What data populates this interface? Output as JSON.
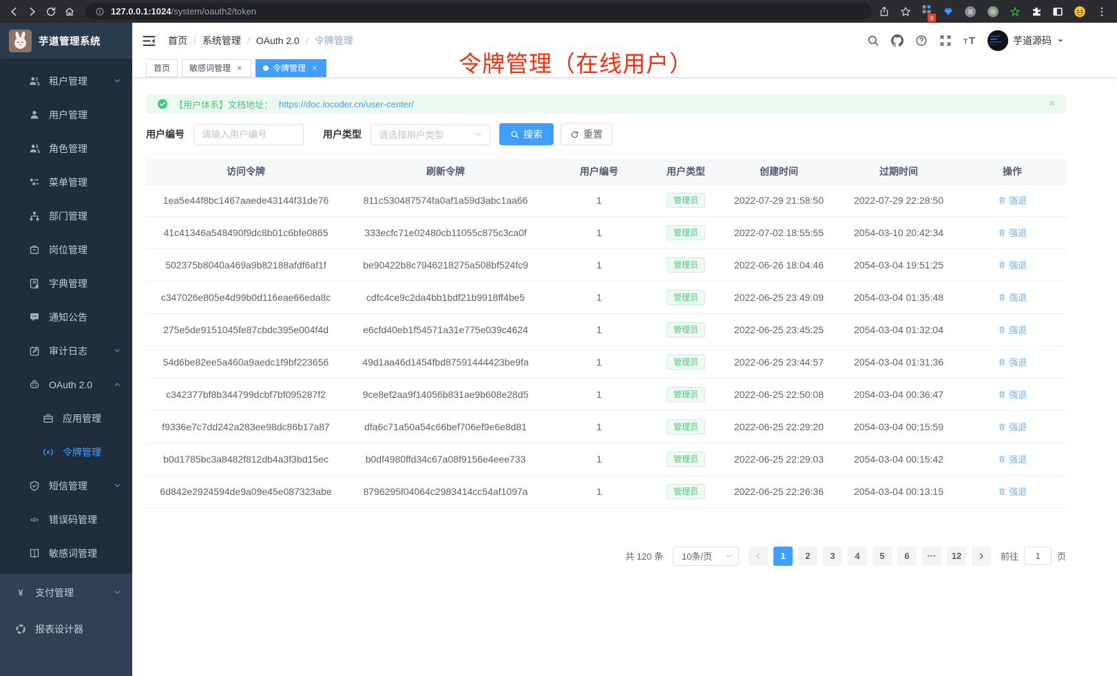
{
  "browser": {
    "url_host": "127.0.0.1:1024",
    "url_path": "/system/oauth2/token",
    "extension_badge": "9"
  },
  "sidebar": {
    "logo_title": "芋道管理系统",
    "items": [
      {
        "label": "租户管理",
        "icon": "tenant-icon",
        "chevron": "down",
        "level": 2,
        "section": "sub",
        "active": false
      },
      {
        "label": "用户管理",
        "icon": "user-icon",
        "chevron": "",
        "level": 2,
        "section": "sub",
        "active": false
      },
      {
        "label": "角色管理",
        "icon": "role-icon",
        "chevron": "",
        "level": 2,
        "section": "sub",
        "active": false
      },
      {
        "label": "菜单管理",
        "icon": "menu-tree-icon",
        "chevron": "",
        "level": 2,
        "section": "sub",
        "active": false
      },
      {
        "label": "部门管理",
        "icon": "dept-icon",
        "chevron": "",
        "level": 2,
        "section": "sub",
        "active": false
      },
      {
        "label": "岗位管理",
        "icon": "post-icon",
        "chevron": "",
        "level": 2,
        "section": "sub",
        "active": false
      },
      {
        "label": "字典管理",
        "icon": "dict-icon",
        "chevron": "",
        "level": 2,
        "section": "sub",
        "active": false
      },
      {
        "label": "通知公告",
        "icon": "notice-icon",
        "chevron": "",
        "level": 2,
        "section": "sub",
        "active": false
      },
      {
        "label": "审计日志",
        "icon": "audit-log-icon",
        "chevron": "down",
        "level": 2,
        "section": "sub",
        "active": false
      },
      {
        "label": "OAuth 2.0",
        "icon": "oauth-icon",
        "chevron": "up",
        "level": 2,
        "section": "sub",
        "active": false
      },
      {
        "label": "应用管理",
        "icon": "app-icon",
        "chevron": "",
        "level": 3,
        "section": "sub",
        "active": false
      },
      {
        "label": "令牌管理",
        "icon": "token-icon",
        "chevron": "",
        "level": 3,
        "section": "sub",
        "active": true
      },
      {
        "label": "短信管理",
        "icon": "sms-shield-icon",
        "chevron": "down",
        "level": 2,
        "section": "sub",
        "active": false
      },
      {
        "label": "错误码管理",
        "icon": "error-code-icon",
        "chevron": "",
        "level": 2,
        "section": "sub",
        "active": false
      },
      {
        "label": "敏感词管理",
        "icon": "sensitive-words-icon",
        "chevron": "",
        "level": 2,
        "section": "sub",
        "active": false
      },
      {
        "label": "支付管理",
        "icon": "pay-icon",
        "chevron": "down",
        "level": 1,
        "section": "top",
        "active": false
      },
      {
        "label": "报表设计器",
        "icon": "report-icon",
        "chevron": "",
        "level": 1,
        "section": "top",
        "active": false
      }
    ]
  },
  "header": {
    "breadcrumb": [
      "首页",
      "系统管理",
      "OAuth 2.0",
      "令牌管理"
    ],
    "breadcrumb_separator": "/",
    "username": "芋道源码"
  },
  "tabs": [
    {
      "label": "首页",
      "closable": false,
      "active": false
    },
    {
      "label": "敏感词管理",
      "closable": true,
      "active": false
    },
    {
      "label": "令牌管理",
      "closable": true,
      "active": true
    }
  ],
  "ui": {
    "close_glyph": "×"
  },
  "annotation": "令牌管理（在线用户）",
  "alert": {
    "text": "【用户体系】文档地址：",
    "link": "https://doc.iocoder.cn/user-center/"
  },
  "filters": {
    "user_id_label": "用户编号",
    "user_id_placeholder": "请输入用户编号",
    "user_type_label": "用户类型",
    "user_type_placeholder": "请选择用户类型",
    "search_label": "搜索",
    "reset_label": "重置"
  },
  "table": {
    "headers": [
      "访问令牌",
      "刷新令牌",
      "用户编号",
      "用户类型",
      "创建时间",
      "过期时间",
      "操作"
    ],
    "action_label": "强退",
    "rows": [
      {
        "access": "1ea5e44f8bc1467aaede43144f31de76",
        "refresh": "811c530487574fa0af1a59d3abc1aa66",
        "user_id": "1",
        "user_type": "管理员",
        "created": "2022-07-29 21:58:50",
        "expired": "2022-07-29 22:28:50"
      },
      {
        "access": "41c41346a548490f9dc8b01c6bfe0865",
        "refresh": "333ecfc71e02480cb11055c875c3ca0f",
        "user_id": "1",
        "user_type": "管理员",
        "created": "2022-07-02 18:55:55",
        "expired": "2054-03-10 20:42:34"
      },
      {
        "access": "502375b8040a469a9b82188afdf6af1f",
        "refresh": "be90422b8c7946218275a508bf524fc9",
        "user_id": "1",
        "user_type": "管理员",
        "created": "2022-06-26 18:04:46",
        "expired": "2054-03-04 19:51:25"
      },
      {
        "access": "c347026e805e4d99b0d116eae66eda8c",
        "refresh": "cdfc4ce9c2da4bb1bdf21b9918ff4be5",
        "user_id": "1",
        "user_type": "管理员",
        "created": "2022-06-25 23:49:09",
        "expired": "2054-03-04 01:35:48"
      },
      {
        "access": "275e5de9151045fe87cbdc395e004f4d",
        "refresh": "e6cfd40eb1f54571a31e775e039c4624",
        "user_id": "1",
        "user_type": "管理员",
        "created": "2022-06-25 23:45:25",
        "expired": "2054-03-04 01:32:04"
      },
      {
        "access": "54d6be82ee5a460a9aedc1f9bf223656",
        "refresh": "49d1aa46d1454fbd87591444423be9fa",
        "user_id": "1",
        "user_type": "管理员",
        "created": "2022-06-25 23:44:57",
        "expired": "2054-03-04 01:31:36"
      },
      {
        "access": "c342377bf8b344799dcbf7bf095287f2",
        "refresh": "9ce8ef2aa9f14056b831ae9b608e28d5",
        "user_id": "1",
        "user_type": "管理员",
        "created": "2022-06-25 22:50:08",
        "expired": "2054-03-04 00:36:47"
      },
      {
        "access": "f9336e7c7dd242a283ee98dc86b17a87",
        "refresh": "dfa6c71a50a54c66bef706ef9e6e8d81",
        "user_id": "1",
        "user_type": "管理员",
        "created": "2022-06-25 22:29:20",
        "expired": "2054-03-04 00:15:59"
      },
      {
        "access": "b0d1785bc3a8482f812db4a3f3bd15ec",
        "refresh": "b0df4980ffd34c67a08f9156e4eee733",
        "user_id": "1",
        "user_type": "管理员",
        "created": "2022-06-25 22:29:03",
        "expired": "2054-03-04 00:15:42"
      },
      {
        "access": "6d842e2924594de9a09e45e087323abe",
        "refresh": "8796295f04064c2983414cc54af1097a",
        "user_id": "1",
        "user_type": "管理员",
        "created": "2022-06-25 22:26:36",
        "expired": "2054-03-04 00:13:15"
      }
    ]
  },
  "pagination": {
    "total": "共 120 条",
    "page_size": "10条/页",
    "pages": [
      "1",
      "2",
      "3",
      "4",
      "5",
      "6",
      "···",
      "12"
    ],
    "active_page": "1",
    "goto_label": "前往",
    "goto_value": "1",
    "goto_unit": "页"
  },
  "colors": {
    "accent": "#409eff",
    "success": "#4fc97e",
    "annotation_red": "#fb2c0c"
  }
}
